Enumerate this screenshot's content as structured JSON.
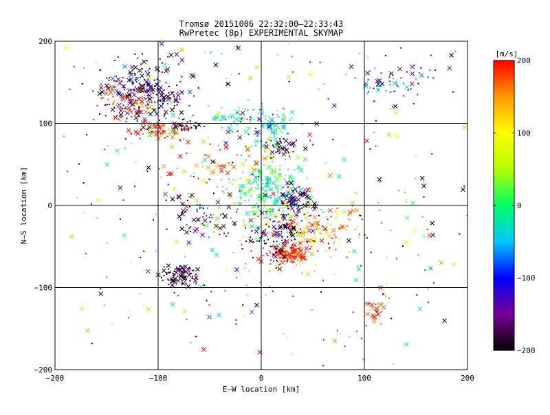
{
  "chart_data": {
    "type": "scatter",
    "title": "Tromsø 20151006 22:32:00–22:33:43",
    "subtitle": "RwPretec (8p) EXPERIMENTAL SKYMAP",
    "xlabel": "E–W location [km]",
    "ylabel": "N–S location [km]",
    "xlim": [
      -200,
      200
    ],
    "ylim": [
      -200,
      200
    ],
    "xticks": [
      -200,
      -100,
      0,
      100,
      200
    ],
    "yticks": [
      -200,
      -100,
      0,
      100,
      200
    ],
    "grid": true,
    "markers": [
      "dot",
      "x"
    ],
    "colorbar": {
      "label": "[m/s]",
      "min": -200,
      "max": 200,
      "ticks": [
        -200,
        -100,
        0,
        100,
        200
      ],
      "colormap": [
        "#000000",
        "#7a0099",
        "#0000ff",
        "#00c8ff",
        "#00ff66",
        "#b4ff00",
        "#ffff00",
        "#ff9900",
        "#ff0000"
      ]
    },
    "clusters": [
      {
        "x": -115,
        "y": 140,
        "sx": 22,
        "sy": 20,
        "n": 260,
        "v": -170,
        "vs": 60
      },
      {
        "x": -130,
        "y": 125,
        "sx": 12,
        "sy": 10,
        "n": 60,
        "v": 185,
        "vs": 25
      },
      {
        "x": -95,
        "y": 92,
        "sx": 12,
        "sy": 7,
        "n": 70,
        "v": 185,
        "vs": 25
      },
      {
        "x": -75,
        "y": 98,
        "sx": 8,
        "sy": 5,
        "n": 30,
        "v": -190,
        "vs": 20
      },
      {
        "x": -20,
        "y": 105,
        "sx": 15,
        "sy": 10,
        "n": 60,
        "v": -40,
        "vs": 50
      },
      {
        "x": 12,
        "y": 95,
        "sx": 8,
        "sy": 10,
        "n": 60,
        "v": -5,
        "vs": 40
      },
      {
        "x": 22,
        "y": 72,
        "sx": 8,
        "sy": 6,
        "n": 40,
        "v": -180,
        "vs": 30
      },
      {
        "x": 5,
        "y": 20,
        "sx": 18,
        "sy": 28,
        "n": 250,
        "v": 0,
        "vs": 35
      },
      {
        "x": 35,
        "y": 8,
        "sx": 10,
        "sy": 7,
        "n": 80,
        "v": -170,
        "vs": 40
      },
      {
        "x": 28,
        "y": -60,
        "sx": 10,
        "sy": 7,
        "n": 130,
        "v": 190,
        "vs": 20
      },
      {
        "x": 55,
        "y": -30,
        "sx": 22,
        "sy": 15,
        "n": 130,
        "v": 140,
        "vs": 60
      },
      {
        "x": 15,
        "y": -35,
        "sx": 18,
        "sy": 15,
        "n": 120,
        "v": -180,
        "vs": 40
      },
      {
        "x": -80,
        "y": -85,
        "sx": 10,
        "sy": 6,
        "n": 90,
        "v": -190,
        "vs": 20
      },
      {
        "x": -55,
        "y": -10,
        "sx": 20,
        "sy": 15,
        "n": 60,
        "v": -185,
        "vs": 30
      },
      {
        "x": -40,
        "y": 50,
        "sx": 25,
        "sy": 12,
        "n": 50,
        "v": 160,
        "vs": 50
      },
      {
        "x": 112,
        "y": -125,
        "sx": 6,
        "sy": 10,
        "n": 30,
        "v": 185,
        "vs": 20
      },
      {
        "x": 140,
        "y": 150,
        "sx": 35,
        "sy": 15,
        "n": 50,
        "v": -120,
        "vs": 80
      },
      {
        "x": 120,
        "y": 145,
        "sx": 12,
        "sy": 5,
        "n": 15,
        "v": -50,
        "vs": 20
      },
      {
        "x": 0,
        "y": 0,
        "sx": 120,
        "sy": 120,
        "n": 450,
        "v": 0,
        "vs": 160
      }
    ]
  }
}
